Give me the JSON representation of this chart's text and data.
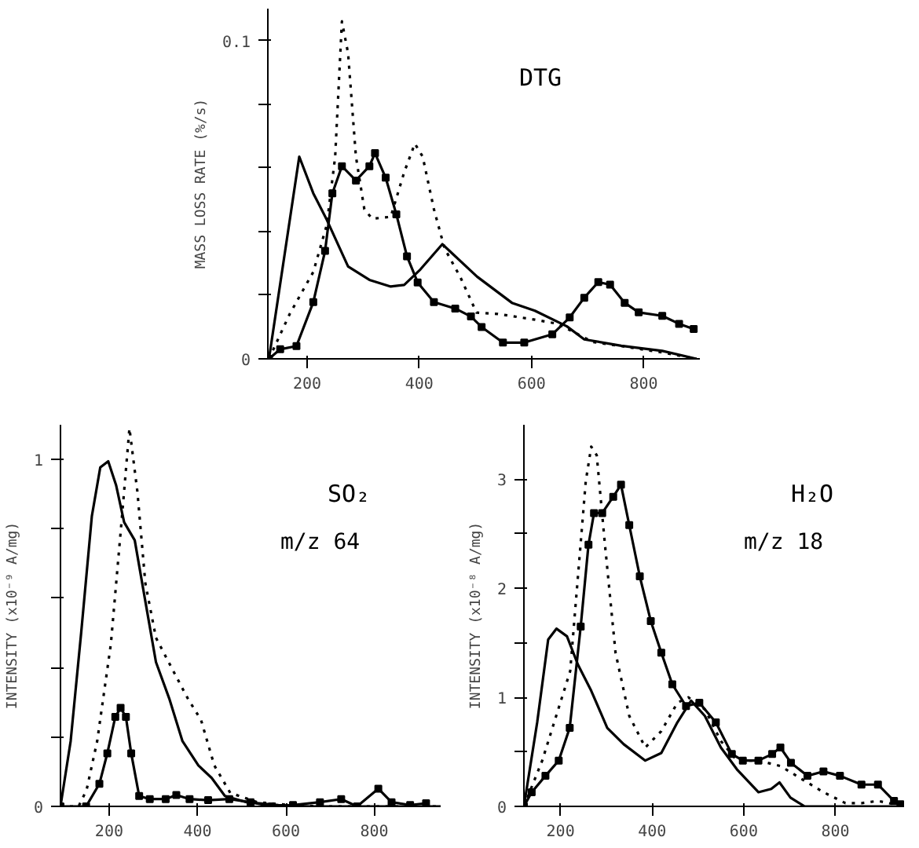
{
  "chart_data": [
    {
      "type": "line",
      "title": "DTG",
      "ylabel": "MASS LOSS RATE (%/s)",
      "xlim": [
        130,
        900
      ],
      "xticks": [
        200,
        400,
        600,
        800
      ],
      "ylim": [
        0,
        0.11
      ],
      "yticks": [
        0,
        {
          "value": 0.02,
          "label": null
        },
        {
          "value": 0.04,
          "label": null
        },
        {
          "value": 0.06,
          "label": null
        },
        {
          "value": 0.08,
          "label": null
        },
        0.1
      ],
      "grid": false,
      "series": [
        {
          "color": "#000000",
          "line_style": "solid",
          "marker": "none",
          "x": [
            132,
            186,
            211,
            235,
            273,
            311,
            349,
            373,
            402,
            441,
            503,
            565,
            606,
            663,
            694,
            760,
            833,
            894
          ],
          "values": [
            0,
            0.0635,
            0.052,
            0.0437,
            0.029,
            0.0248,
            0.0227,
            0.0232,
            0.0281,
            0.036,
            0.0258,
            0.0176,
            0.0151,
            0.0102,
            0.0061,
            0.0041,
            0.0025,
            0
          ]
        },
        {
          "color": "#000000",
          "line_style": "dotted",
          "marker": "none",
          "x": [
            132,
            169,
            211,
            235,
            250,
            262,
            273,
            287,
            302,
            316,
            349,
            373,
            392,
            406,
            426,
            445,
            473,
            502,
            540,
            606,
            647,
            709,
            760,
            833,
            894
          ],
          "values": [
            0,
            0.0141,
            0.0273,
            0.042,
            0.0635,
            0.106,
            0.096,
            0.0635,
            0.047,
            0.044,
            0.0446,
            0.0586,
            0.0676,
            0.0635,
            0.047,
            0.0347,
            0.0257,
            0.0145,
            0.0141,
            0.0123,
            0.011,
            0.0053,
            0.004,
            0.002,
            0
          ]
        },
        {
          "color": "#000000",
          "line_style": "solid",
          "marker": "square",
          "x": [
            132,
            152,
            181,
            211,
            232,
            245,
            262,
            287,
            311,
            321,
            340,
            359,
            378,
            397,
            426,
            464,
            492,
            511,
            549,
            587,
            637,
            668,
            694,
            719,
            740,
            766,
            791,
            833,
            863,
            889
          ],
          "values": [
            0,
            0.003,
            0.004,
            0.0178,
            0.0339,
            0.052,
            0.0605,
            0.056,
            0.0605,
            0.0646,
            0.0569,
            0.0454,
            0.0322,
            0.024,
            0.0178,
            0.0158,
            0.0133,
            0.01,
            0.0051,
            0.0051,
            0.0077,
            0.013,
            0.0192,
            0.0241,
            0.0233,
            0.0176,
            0.0146,
            0.0135,
            0.011,
            0.0094
          ]
        }
      ]
    },
    {
      "type": "line",
      "title": "SO₂",
      "annotations": [
        "m/z 64"
      ],
      "ylabel": "INTENSITY (x10⁻⁹ A/mg)",
      "xlim": [
        90,
        950
      ],
      "xticks": [
        200,
        400,
        600,
        800
      ],
      "ylim": [
        0,
        1.1
      ],
      "yticks": [
        0,
        {
          "value": 0.2,
          "label": null
        },
        {
          "value": 0.4,
          "label": null
        },
        {
          "value": 0.6,
          "label": null
        },
        {
          "value": 0.8,
          "label": null
        },
        1
      ],
      "grid": false,
      "series": [
        {
          "color": "#000000",
          "line_style": "solid",
          "marker": "none",
          "x": [
            90,
            113,
            137,
            161,
            180,
            198,
            216,
            234,
            258,
            282,
            306,
            336,
            366,
            402,
            432,
            462,
            511,
            583,
            655,
            950
          ],
          "values": [
            0,
            0.188,
            0.503,
            0.837,
            0.977,
            0.995,
            0.925,
            0.819,
            0.767,
            0.591,
            0.416,
            0.311,
            0.188,
            0.118,
            0.082,
            0.03,
            0.012,
            0.004,
            0,
            0
          ]
        },
        {
          "color": "#000000",
          "line_style": "dotted",
          "marker": "none",
          "x": [
            90,
            131,
            149,
            173,
            204,
            228,
            246,
            264,
            282,
            306,
            342,
            378,
            408,
            438,
            474,
            535,
            607,
            679,
            950
          ],
          "values": [
            0,
            0,
            0.047,
            0.188,
            0.468,
            0.819,
            1.09,
            0.907,
            0.643,
            0.486,
            0.398,
            0.311,
            0.249,
            0.118,
            0.039,
            0.012,
            0.004,
            0,
            0
          ]
        },
        {
          "color": "#000000",
          "line_style": "solid",
          "marker": "square",
          "x": [
            90,
            148,
            178,
            196,
            214,
            226,
            238,
            250,
            268,
            292,
            328,
            352,
            382,
            424,
            472,
            520,
            568,
            616,
            677,
            725,
            761,
            809,
            839,
            881,
            917
          ],
          "values": [
            0,
            0,
            0.065,
            0.153,
            0.258,
            0.284,
            0.258,
            0.153,
            0.03,
            0.021,
            0.021,
            0.033,
            0.021,
            0.018,
            0.021,
            0.012,
            0,
            0.004,
            0.012,
            0.021,
            0,
            0.051,
            0.012,
            0.004,
            0.009
          ]
        }
      ]
    },
    {
      "type": "line",
      "title": "H₂O",
      "annotations": [
        "m/z 18"
      ],
      "ylabel": "INTENSITY (x10⁻⁸ A/mg)",
      "xlim": [
        120,
        950
      ],
      "xticks": [
        200,
        400,
        600,
        800
      ],
      "ylim": [
        0,
        3.5
      ],
      "yticks": [
        0,
        {
          "value": 0.5,
          "label": null
        },
        1,
        {
          "value": 1.5,
          "label": null
        },
        2,
        {
          "value": 2.5,
          "label": null
        },
        3
      ],
      "grid": false,
      "series": [
        {
          "color": "#000000",
          "line_style": "solid",
          "marker": "none",
          "x": [
            120,
            149,
            173,
            191,
            214,
            238,
            267,
            302,
            338,
            385,
            420,
            455,
            485,
            515,
            550,
            585,
            632,
            660,
            678,
            702,
            733,
            950
          ],
          "values": [
            0,
            0.77,
            1.53,
            1.63,
            1.56,
            1.3,
            1.06,
            0.72,
            0.57,
            0.42,
            0.49,
            0.77,
            0.97,
            0.83,
            0.54,
            0.34,
            0.13,
            0.16,
            0.22,
            0.08,
            0,
            0
          ]
        },
        {
          "color": "#000000",
          "line_style": "dotted",
          "marker": "none",
          "x": [
            120,
            160,
            221,
            238,
            255,
            267,
            279,
            297,
            320,
            350,
            385,
            420,
            455,
            479,
            515,
            550,
            585,
            632,
            680,
            727,
            774,
            822,
            857,
            893,
            928,
            950
          ],
          "values": [
            0,
            0.42,
            1.24,
            2.11,
            2.98,
            3.3,
            3.22,
            2.4,
            1.41,
            0.83,
            0.54,
            0.69,
            0.95,
            1.0,
            0.89,
            0.6,
            0.42,
            0.42,
            0.37,
            0.25,
            0.13,
            0.03,
            0.03,
            0.05,
            0.02,
            0
          ]
        },
        {
          "color": "#000000",
          "line_style": "solid",
          "marker": "square",
          "x": [
            120,
            137,
            167,
            196,
            220,
            244,
            261,
            273,
            291,
            315,
            332,
            350,
            373,
            397,
            420,
            444,
            474,
            503,
            539,
            574,
            598,
            632,
            662,
            680,
            703,
            739,
            774,
            810,
            857,
            893,
            928,
            942
          ],
          "values": [
            0,
            0.13,
            0.28,
            0.42,
            0.72,
            1.65,
            2.4,
            2.69,
            2.69,
            2.84,
            2.95,
            2.58,
            2.11,
            1.7,
            1.41,
            1.12,
            0.92,
            0.95,
            0.77,
            0.48,
            0.42,
            0.42,
            0.48,
            0.54,
            0.4,
            0.28,
            0.32,
            0.28,
            0.2,
            0.2,
            0.05,
            0.02
          ]
        }
      ]
    }
  ]
}
